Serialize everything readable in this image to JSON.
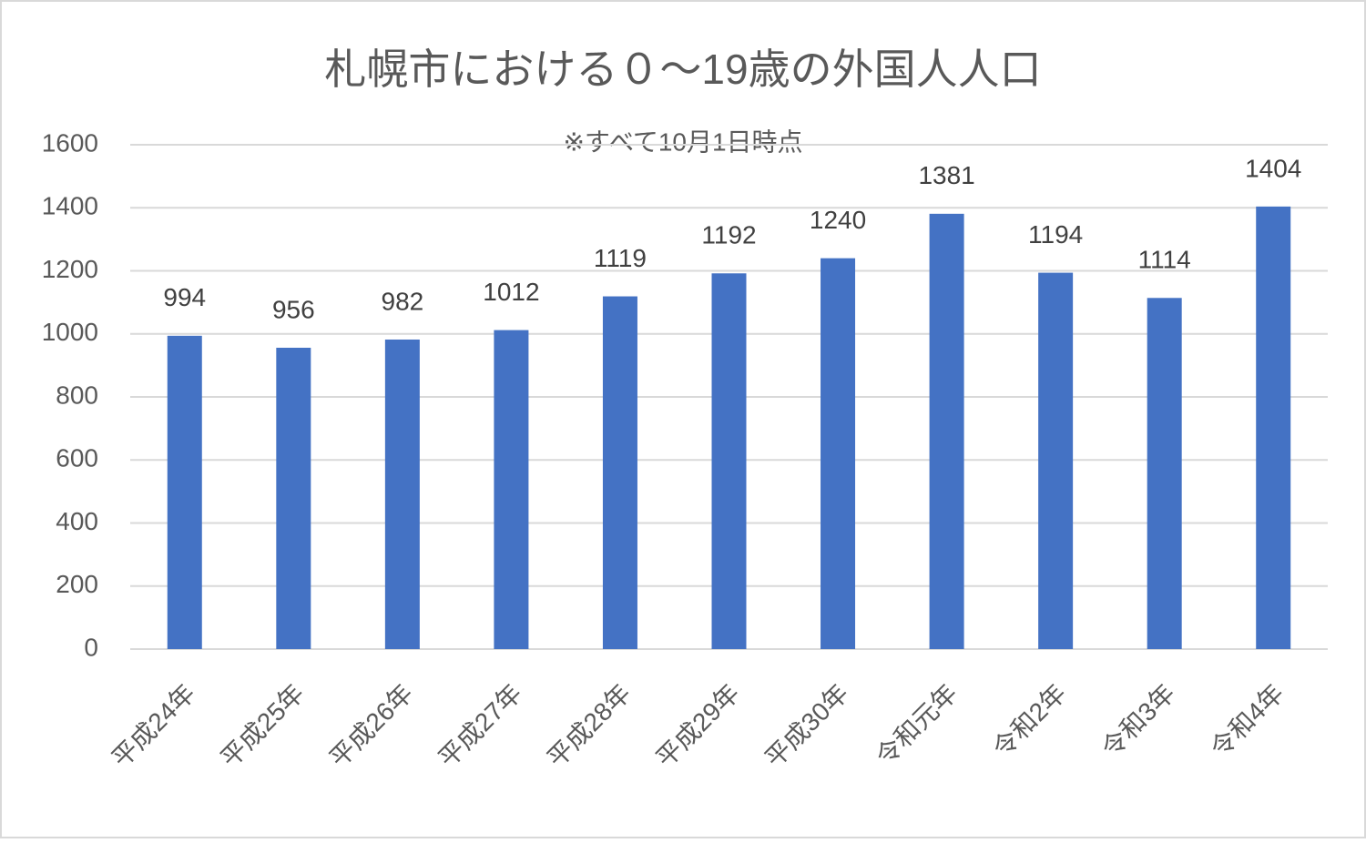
{
  "chart_data": {
    "type": "bar",
    "title": "札幌市における０～19歳の外国人人口",
    "subtitle": "※すべて10月1日時点",
    "categories": [
      "平成24年",
      "平成25年",
      "平成26年",
      "平成27年",
      "平成28年",
      "平成29年",
      "平成30年",
      "令和元年",
      "令和2年",
      "令和3年",
      "令和4年"
    ],
    "values": [
      994,
      956,
      982,
      1012,
      1119,
      1192,
      1240,
      1381,
      1194,
      1114,
      1404
    ],
    "color": "#4472c4",
    "ylim": [
      0,
      1600
    ],
    "yticks": [
      0,
      200,
      400,
      600,
      800,
      1000,
      1200,
      1400,
      1600
    ],
    "grid": true,
    "data_labels": true
  }
}
